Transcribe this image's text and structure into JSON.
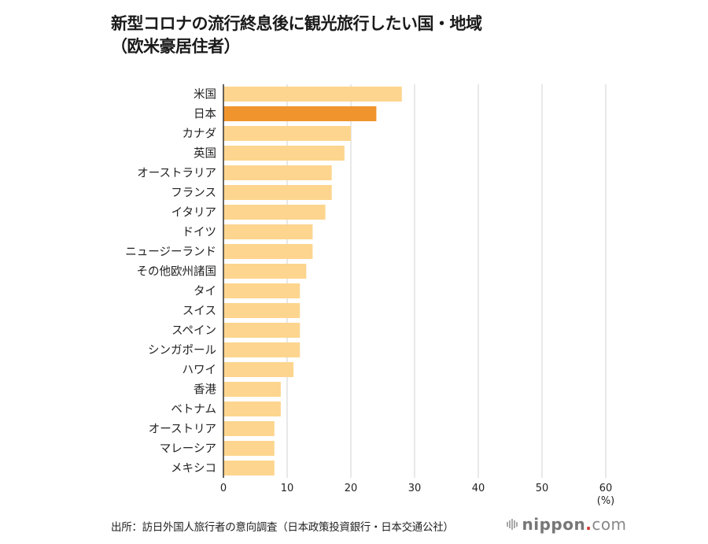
{
  "chart_data": {
    "type": "bar",
    "orientation": "horizontal",
    "title": "新型コロナの流行終息後に観光旅行したい国・地域",
    "subtitle": "（欧米豪居住者）",
    "categories": [
      "米国",
      "日本",
      "カナダ",
      "英国",
      "オーストラリア",
      "フランス",
      "イタリア",
      "ドイツ",
      "ニュージーランド",
      "その他欧州諸国",
      "タイ",
      "スイス",
      "スペイン",
      "シンガポール",
      "ハワイ",
      "香港",
      "ベトナム",
      "オーストリア",
      "マレーシア",
      "メキシコ"
    ],
    "values": [
      28,
      24,
      20,
      19,
      17,
      17,
      16,
      14,
      14,
      13,
      12,
      12,
      12,
      12,
      11,
      9,
      9,
      8,
      8,
      8
    ],
    "highlight": "日本",
    "xlabel": "(%)",
    "xlim": [
      0,
      60
    ],
    "xticks": [
      "0",
      "10",
      "20",
      "30",
      "40",
      "50",
      "60"
    ],
    "grid": true,
    "colors": {
      "bar": "#fdd58e",
      "highlight": "#f0952e",
      "grid": "#d8d8d8",
      "axis": "#333333"
    }
  },
  "source": "出所：訪日外国人旅行者の意向調査（日本政策投資銀行・日本交通公社）",
  "logo": {
    "name": "nippon",
    "dot": ".",
    "suffix": "com"
  }
}
